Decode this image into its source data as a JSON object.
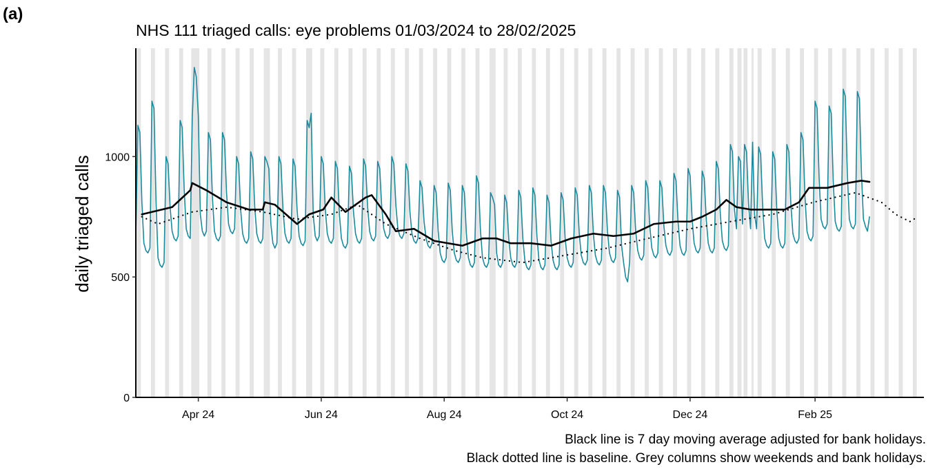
{
  "panel_label": "(a)",
  "chart_data": {
    "type": "line",
    "title": "NHS 111 triaged calls: eye problems 01/03/2024 to 28/02/2025",
    "ylabel": "daily triaged calls",
    "notes": [
      "Black line is 7 day moving average adjusted for bank holidays.",
      "Black dotted line is baseline. Grey columns show weekends and bank holidays."
    ],
    "xlim": [
      0,
      391
    ],
    "xticks": [
      {
        "value": 31,
        "label": "Apr 24"
      },
      {
        "value": 92,
        "label": "Jun 24"
      },
      {
        "value": 153,
        "label": "Aug 24"
      },
      {
        "value": 214,
        "label": "Oct 24"
      },
      {
        "value": 275,
        "label": "Dec 24"
      },
      {
        "value": 337,
        "label": "Feb 25"
      }
    ],
    "ylim": [
      0,
      1450
    ],
    "yticks": [
      0,
      500,
      1000
    ],
    "shaded": [
      [
        1,
        2
      ],
      [
        8,
        9
      ],
      [
        15,
        16
      ],
      [
        22,
        23
      ],
      [
        28,
        31
      ],
      [
        36,
        37
      ],
      [
        43,
        44
      ],
      [
        50,
        51
      ],
      [
        57,
        58
      ],
      [
        64,
        66
      ],
      [
        71,
        72
      ],
      [
        78,
        79
      ],
      [
        85,
        87
      ],
      [
        92,
        93
      ],
      [
        99,
        100
      ],
      [
        106,
        107
      ],
      [
        113,
        114
      ],
      [
        120,
        121
      ],
      [
        127,
        128
      ],
      [
        134,
        135
      ],
      [
        141,
        142
      ],
      [
        148,
        149
      ],
      [
        155,
        156
      ],
      [
        162,
        163
      ],
      [
        169,
        170
      ],
      [
        176,
        178
      ],
      [
        183,
        184
      ],
      [
        190,
        191
      ],
      [
        197,
        198
      ],
      [
        204,
        205
      ],
      [
        211,
        212
      ],
      [
        218,
        219
      ],
      [
        225,
        226
      ],
      [
        232,
        233
      ],
      [
        239,
        240
      ],
      [
        246,
        247
      ],
      [
        253,
        254
      ],
      [
        260,
        261
      ],
      [
        267,
        268
      ],
      [
        274,
        275
      ],
      [
        281,
        282
      ],
      [
        288,
        289
      ],
      [
        295,
        296
      ],
      [
        299,
        300
      ],
      [
        302,
        303
      ],
      [
        306,
        306
      ],
      [
        309,
        310
      ],
      [
        316,
        317
      ],
      [
        323,
        324
      ],
      [
        330,
        331
      ],
      [
        337,
        338
      ],
      [
        344,
        345
      ],
      [
        351,
        352
      ],
      [
        358,
        359
      ],
      [
        365,
        366
      ],
      [
        372,
        373
      ],
      [
        379,
        380
      ],
      [
        386,
        387
      ]
    ],
    "shade_color": "#e5e5e5",
    "series": [
      {
        "color": "#1b8a9c",
        "width": 1.6,
        "style": "solid",
        "x": [
          0,
          1,
          2,
          3,
          4,
          5,
          6,
          7,
          8,
          9,
          10,
          11,
          12,
          13,
          14,
          15,
          16,
          17,
          18,
          19,
          20,
          21,
          22,
          23,
          24,
          25,
          26,
          27,
          28,
          29,
          30,
          31,
          32,
          33,
          34,
          35,
          36,
          37,
          38,
          39,
          40,
          41,
          42,
          43,
          44,
          45,
          46,
          47,
          48,
          49,
          50,
          51,
          52,
          53,
          54,
          55,
          56,
          57,
          58,
          59,
          60,
          61,
          62,
          63,
          64,
          65,
          66,
          67,
          68,
          69,
          70,
          71,
          72,
          73,
          74,
          75,
          76,
          77,
          78,
          79,
          80,
          81,
          82,
          83,
          84,
          85,
          86,
          87,
          88,
          89,
          90,
          91,
          92,
          93,
          94,
          95,
          96,
          97,
          98,
          99,
          100,
          101,
          102,
          103,
          104,
          105,
          106,
          107,
          108,
          109,
          110,
          111,
          112,
          113,
          114,
          115,
          116,
          117,
          118,
          119,
          120,
          121,
          122,
          123,
          124,
          125,
          126,
          127,
          128,
          129,
          130,
          131,
          132,
          133,
          134,
          135,
          136,
          137,
          138,
          139,
          140,
          141,
          142,
          143,
          144,
          145,
          146,
          147,
          148,
          149,
          150,
          151,
          152,
          153,
          154,
          155,
          156,
          157,
          158,
          159,
          160,
          161,
          162,
          163,
          164,
          165,
          166,
          167,
          168,
          169,
          170,
          171,
          172,
          173,
          174,
          175,
          176,
          177,
          178,
          179,
          180,
          181,
          182,
          183,
          184,
          185,
          186,
          187,
          188,
          189,
          190,
          191,
          192,
          193,
          194,
          195,
          196,
          197,
          198,
          199,
          200,
          201,
          202,
          203,
          204,
          205,
          206,
          207,
          208,
          209,
          210,
          211,
          212,
          213,
          214,
          215,
          216,
          217,
          218,
          219,
          220,
          221,
          222,
          223,
          224,
          225,
          226,
          227,
          228,
          229,
          230,
          231,
          232,
          233,
          234,
          235,
          236,
          237,
          238,
          239,
          240,
          241,
          242,
          243,
          244,
          245,
          246,
          247,
          248,
          249,
          250,
          251,
          252,
          253,
          254,
          255,
          256,
          257,
          258,
          259,
          260,
          261,
          262,
          263,
          264,
          265,
          266,
          267,
          268,
          269,
          270,
          271,
          272,
          273,
          274,
          275,
          276,
          277,
          278,
          279,
          280,
          281,
          282,
          283,
          284,
          285,
          286,
          287,
          288,
          289,
          290,
          291,
          292,
          293,
          294,
          295,
          296,
          297,
          298,
          299,
          300,
          301,
          302,
          303,
          304,
          305,
          306,
          307,
          308,
          309,
          310,
          311,
          312,
          313,
          314,
          315,
          316,
          317,
          318,
          319,
          320,
          321,
          322,
          323,
          324,
          325,
          326,
          327,
          328,
          329,
          330,
          331,
          332,
          333,
          334,
          335,
          336,
          337,
          338,
          339,
          340,
          341,
          342,
          343,
          344,
          345,
          346,
          347,
          348,
          349,
          350,
          351,
          352,
          353,
          354,
          355,
          356,
          357,
          358,
          359,
          360,
          361,
          362,
          363,
          364
        ],
        "values": [
          670,
          1130,
          1100,
          810,
          640,
          610,
          600,
          620,
          1230,
          1200,
          820,
          580,
          550,
          540,
          560,
          1000,
          970,
          790,
          690,
          660,
          650,
          670,
          1150,
          1120,
          860,
          700,
          670,
          660,
          1160,
          1370,
          1330,
          1170,
          760,
          690,
          670,
          690,
          1100,
          1070,
          830,
          690,
          660,
          650,
          670,
          1100,
          1070,
          850,
          720,
          690,
          680,
          700,
          1000,
          970,
          780,
          680,
          650,
          640,
          660,
          1020,
          990,
          790,
          680,
          650,
          640,
          660,
          1000,
          980,
          950,
          720,
          640,
          620,
          640,
          1000,
          970,
          780,
          680,
          650,
          640,
          660,
          990,
          960,
          780,
          670,
          640,
          630,
          650,
          1150,
          1120,
          1180,
          760,
          670,
          650,
          670,
          1000,
          970,
          780,
          680,
          650,
          640,
          660,
          980,
          950,
          760,
          660,
          630,
          620,
          640,
          960,
          930,
          770,
          680,
          650,
          640,
          660,
          990,
          960,
          790,
          690,
          660,
          650,
          670,
          980,
          950,
          790,
          700,
          670,
          660,
          680,
          1000,
          970,
          800,
          700,
          670,
          660,
          680,
          970,
          940,
          770,
          680,
          650,
          640,
          660,
          900,
          870,
          730,
          660,
          630,
          620,
          640,
          880,
          850,
          690,
          600,
          570,
          560,
          580,
          890,
          860,
          690,
          600,
          570,
          560,
          580,
          880,
          850,
          680,
          580,
          550,
          540,
          560,
          920,
          890,
          690,
          580,
          550,
          540,
          560,
          850,
          830,
          800,
          600,
          550,
          540,
          560,
          840,
          810,
          660,
          580,
          550,
          540,
          560,
          860,
          830,
          660,
          570,
          540,
          530,
          550,
          870,
          840,
          670,
          570,
          540,
          530,
          550,
          840,
          810,
          650,
          570,
          540,
          530,
          550,
          850,
          820,
          660,
          580,
          550,
          540,
          560,
          870,
          840,
          680,
          590,
          560,
          550,
          570,
          880,
          850,
          680,
          590,
          560,
          550,
          570,
          880,
          850,
          690,
          600,
          570,
          560,
          580,
          860,
          830,
          630,
          560,
          500,
          480,
          560,
          880,
          850,
          690,
          610,
          580,
          570,
          590,
          900,
          870,
          710,
          620,
          590,
          580,
          600,
          900,
          870,
          710,
          630,
          600,
          590,
          610,
          930,
          900,
          730,
          630,
          600,
          590,
          610,
          950,
          920,
          740,
          640,
          610,
          600,
          620,
          940,
          910,
          740,
          640,
          610,
          600,
          620,
          980,
          950,
          760,
          650,
          620,
          610,
          630,
          1050,
          1020,
          780,
          700,
          1000,
          980,
          720,
          1050,
          1020,
          800,
          700,
          1060,
          760,
          700,
          1040,
          1010,
          790,
          660,
          630,
          620,
          640,
          1020,
          990,
          780,
          660,
          630,
          620,
          640,
          1050,
          1020,
          800,
          680,
          650,
          640,
          660,
          1100,
          1070,
          830,
          690,
          660,
          650,
          670,
          1230,
          1200,
          910,
          740,
          710,
          700,
          720,
          1210,
          1180,
          900,
          730,
          700,
          690,
          710,
          1280,
          1250,
          930,
          740,
          710,
          700,
          720,
          1270,
          1240,
          930,
          740,
          710,
          690,
          750
        ]
      },
      {
        "color": "#000000",
        "width": 2.6,
        "style": "solid",
        "x": [
          3,
          18,
          27,
          28,
          35,
          45,
          56,
          63,
          64,
          69,
          80,
          86,
          93,
          97,
          104,
          114,
          117,
          124,
          129,
          138,
          148,
          155,
          162,
          172,
          179,
          186,
          196,
          206,
          216,
          227,
          237,
          247,
          257,
          268,
          275,
          281,
          288,
          293,
          298,
          305,
          312,
          322,
          329,
          334,
          343,
          353,
          360,
          364
        ],
        "values": [
          760,
          790,
          860,
          890,
          860,
          810,
          780,
          780,
          810,
          800,
          720,
          760,
          780,
          830,
          770,
          830,
          840,
          760,
          690,
          700,
          650,
          640,
          630,
          660,
          660,
          640,
          640,
          630,
          660,
          680,
          670,
          680,
          720,
          730,
          730,
          750,
          780,
          820,
          790,
          780,
          780,
          780,
          810,
          870,
          870,
          890,
          900,
          895
        ]
      },
      {
        "color": "#000000",
        "width": 2.2,
        "style": "dotted",
        "x": [
          3,
          11,
          28,
          45,
          63,
          80,
          97,
          110,
          124,
          141,
          158,
          172,
          192,
          213,
          234,
          254,
          275,
          295,
          316,
          336,
          357,
          370,
          377,
          384,
          388
        ],
        "values": [
          750,
          720,
          770,
          790,
          770,
          740,
          760,
          800,
          720,
          660,
          610,
          580,
          560,
          590,
          620,
          660,
          700,
          730,
          760,
          810,
          850,
          810,
          760,
          730,
          750
        ]
      }
    ]
  }
}
